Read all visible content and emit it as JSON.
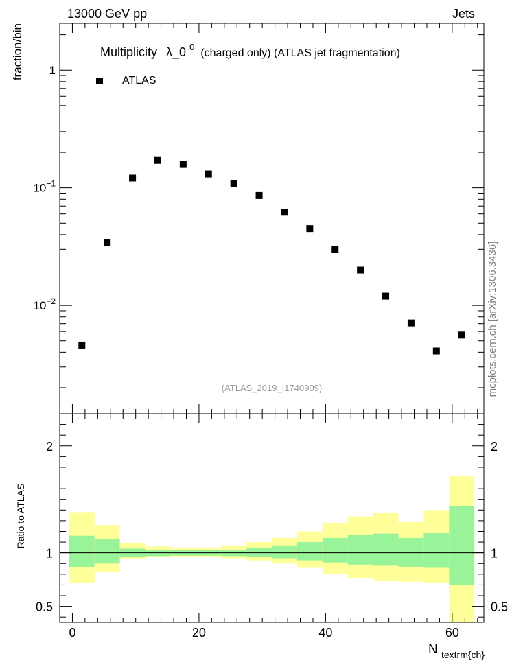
{
  "header": {
    "energy_label": "13000 GeV pp",
    "category_label": "Jets"
  },
  "watermark": "mcplots.cern.ch [arXiv:1306.3436]",
  "chart_data": {
    "type": "scatter",
    "title": "Multiplicity",
    "title_symbol": "λ_0",
    "title_superscript": "0",
    "title_suffix": "(charged only) (ATLAS jet fragmentation)",
    "analysis_id": "(ATLAS_2019_I1740909)",
    "ylabel": "fraction/bin",
    "xlabel": "N",
    "xlabel_subscript": "textrm{ch}",
    "xlim": [
      -2,
      65
    ],
    "ylim": [
      0.0012,
      2.5
    ],
    "yscale": "log",
    "xticks": [
      0,
      20,
      40,
      60
    ],
    "main_yticks": [
      {
        "value": 1,
        "base": "1",
        "exp": ""
      },
      {
        "value": 0.1,
        "base": "10",
        "exp": "−1"
      },
      {
        "value": 0.01,
        "base": "10",
        "exp": "−2"
      }
    ],
    "legend": {
      "position": "top-left",
      "entries": [
        "ATLAS"
      ]
    },
    "series": [
      {
        "name": "ATLAS",
        "x": [
          1.5,
          5.5,
          9.5,
          13.5,
          17.5,
          21.5,
          25.5,
          29.5,
          33.5,
          37.5,
          41.5,
          45.5,
          49.5,
          53.5,
          57.5,
          61.5
        ],
        "values": [
          0.0046,
          0.034,
          0.121,
          0.171,
          0.158,
          0.131,
          0.109,
          0.086,
          0.062,
          0.045,
          0.03,
          0.02,
          0.012,
          0.0071,
          0.0041,
          0.0056
        ]
      }
    ],
    "ratio": {
      "ylabel": "Ratio to ATLAS",
      "ylim": [
        0.35,
        2.3
      ],
      "yticks": [
        0.5,
        1,
        2
      ],
      "bin_edges": [
        -0.5,
        3.5,
        7.5,
        11.5,
        15.5,
        19.5,
        23.5,
        27.5,
        31.5,
        35.5,
        39.5,
        43.5,
        47.5,
        51.5,
        55.5,
        59.5,
        63.5
      ],
      "green_band": {
        "low": [
          0.87,
          0.9,
          0.96,
          0.97,
          0.975,
          0.975,
          0.97,
          0.96,
          0.95,
          0.93,
          0.91,
          0.89,
          0.88,
          0.87,
          0.86,
          0.7
        ],
        "high": [
          1.16,
          1.13,
          1.04,
          1.03,
          1.025,
          1.025,
          1.03,
          1.05,
          1.07,
          1.1,
          1.14,
          1.17,
          1.18,
          1.14,
          1.19,
          1.44
        ]
      },
      "yellow_band": {
        "low": [
          0.72,
          0.82,
          0.94,
          0.96,
          0.965,
          0.965,
          0.95,
          0.93,
          0.9,
          0.86,
          0.8,
          0.76,
          0.74,
          0.73,
          0.72,
          0.35
        ],
        "high": [
          1.38,
          1.26,
          1.09,
          1.06,
          1.05,
          1.05,
          1.07,
          1.1,
          1.14,
          1.2,
          1.28,
          1.34,
          1.37,
          1.29,
          1.4,
          1.72
        ]
      }
    }
  },
  "colors": {
    "marker": "#000000",
    "band_green": "#99f499",
    "band_yellow": "#ffff99",
    "watermark": "#808080",
    "analysis_id": "#999999"
  }
}
